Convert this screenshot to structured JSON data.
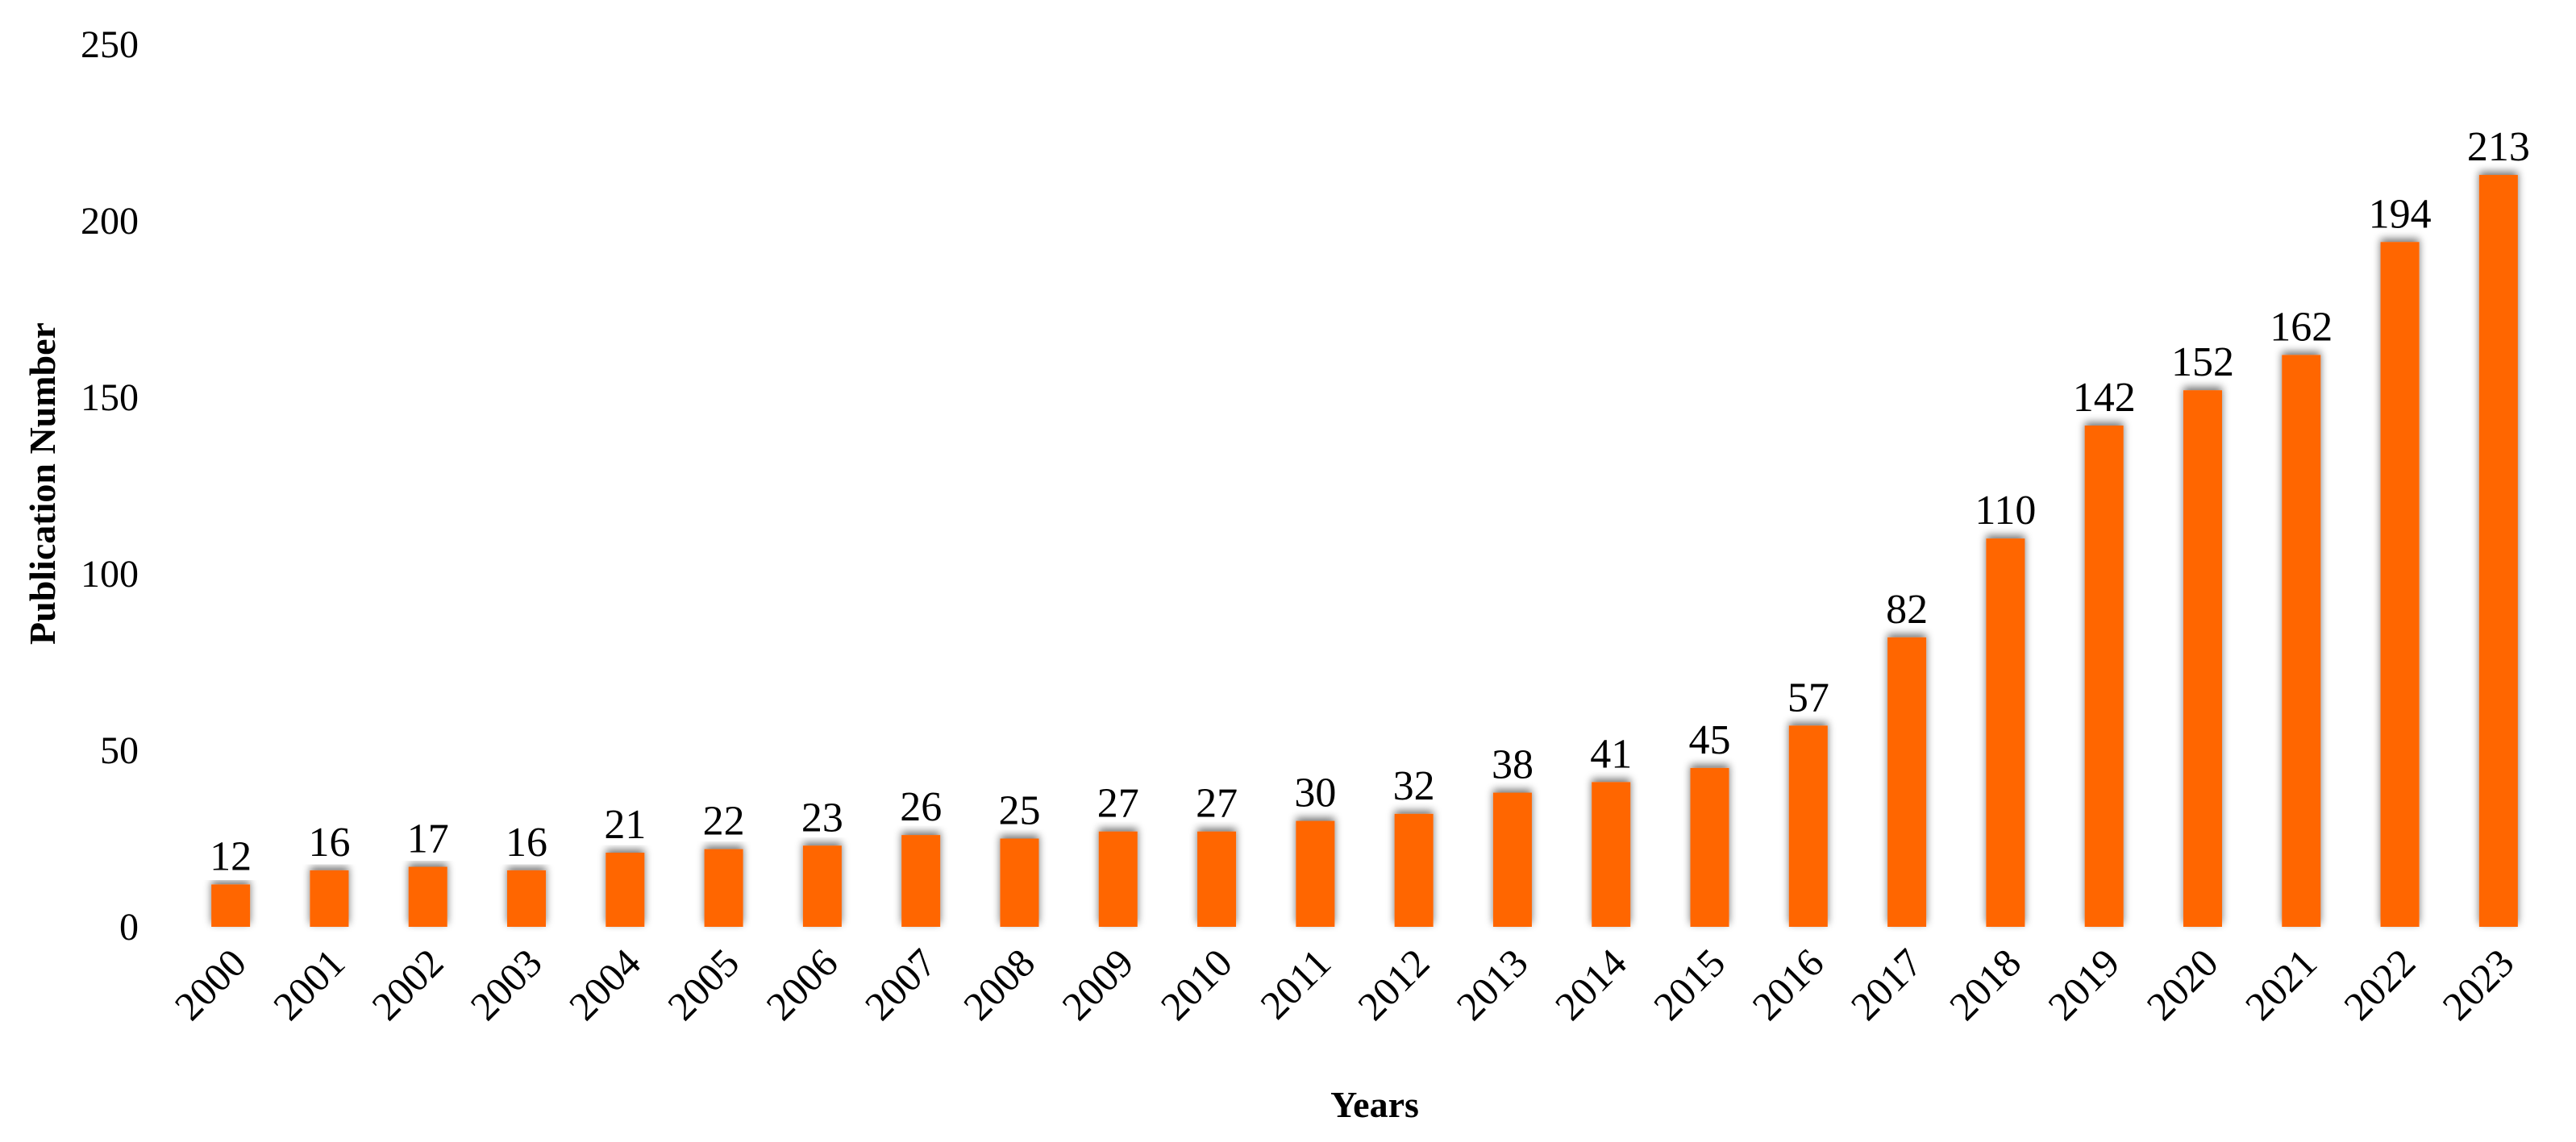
{
  "chart_data": {
    "type": "bar",
    "categories": [
      "2000",
      "2001",
      "2002",
      "2003",
      "2004",
      "2005",
      "2006",
      "2007",
      "2008",
      "2009",
      "2010",
      "2011",
      "2012",
      "2013",
      "2014",
      "2015",
      "2016",
      "2017",
      "2018",
      "2019",
      "2020",
      "2021",
      "2022",
      "2023"
    ],
    "values": [
      12,
      16,
      17,
      16,
      21,
      22,
      23,
      26,
      25,
      27,
      27,
      30,
      32,
      38,
      41,
      45,
      57,
      82,
      110,
      142,
      152,
      162,
      194,
      213
    ],
    "title": "",
    "xlabel": "Years",
    "ylabel": "Publication Number",
    "ylim": [
      0,
      250
    ],
    "yticks": [
      0,
      50,
      100,
      150,
      200,
      250
    ],
    "grid": false,
    "legend": "none",
    "bar_color": "#FF6600",
    "data_labels": true
  }
}
